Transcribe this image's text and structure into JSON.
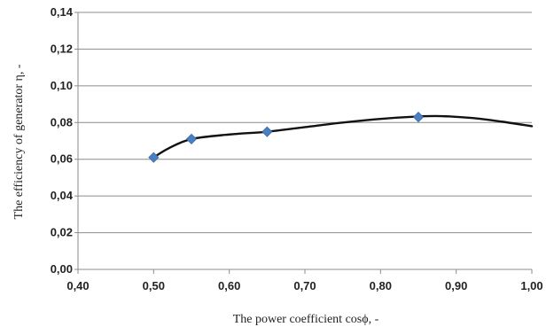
{
  "chart_data": {
    "type": "line",
    "title": "",
    "xlabel": "The power coefficient cosϕ, -",
    "ylabel": "The efficiency of generator η, -",
    "xlim": [
      0.4,
      1.0
    ],
    "ylim": [
      0.0,
      0.14
    ],
    "x_ticks": [
      "0,40",
      "0,50",
      "0,60",
      "0,70",
      "0,80",
      "0,90",
      "1,00"
    ],
    "y_ticks": [
      "0,00",
      "0,02",
      "0,04",
      "0,06",
      "0,08",
      "0,10",
      "0,12",
      "0,14"
    ],
    "grid": "horizontal",
    "legend": "none",
    "series": [
      {
        "markers": {
          "x": [
            0.5,
            0.55,
            0.65,
            0.85
          ],
          "y": [
            0.061,
            0.071,
            0.075,
            0.083
          ]
        },
        "curve": {
          "x": [
            0.5,
            0.52,
            0.55,
            0.6,
            0.65,
            0.7,
            0.75,
            0.8,
            0.85,
            0.88,
            0.92,
            0.96,
            1.0
          ],
          "y": [
            0.061,
            0.066,
            0.071,
            0.0735,
            0.075,
            0.0775,
            0.08,
            0.082,
            0.0833,
            0.0835,
            0.0825,
            0.0805,
            0.078
          ]
        }
      }
    ],
    "colors": {
      "line": "#111111",
      "marker": "#4a7fc1",
      "grid": "#8c8c8c",
      "axis": "#8c8c8c"
    }
  }
}
